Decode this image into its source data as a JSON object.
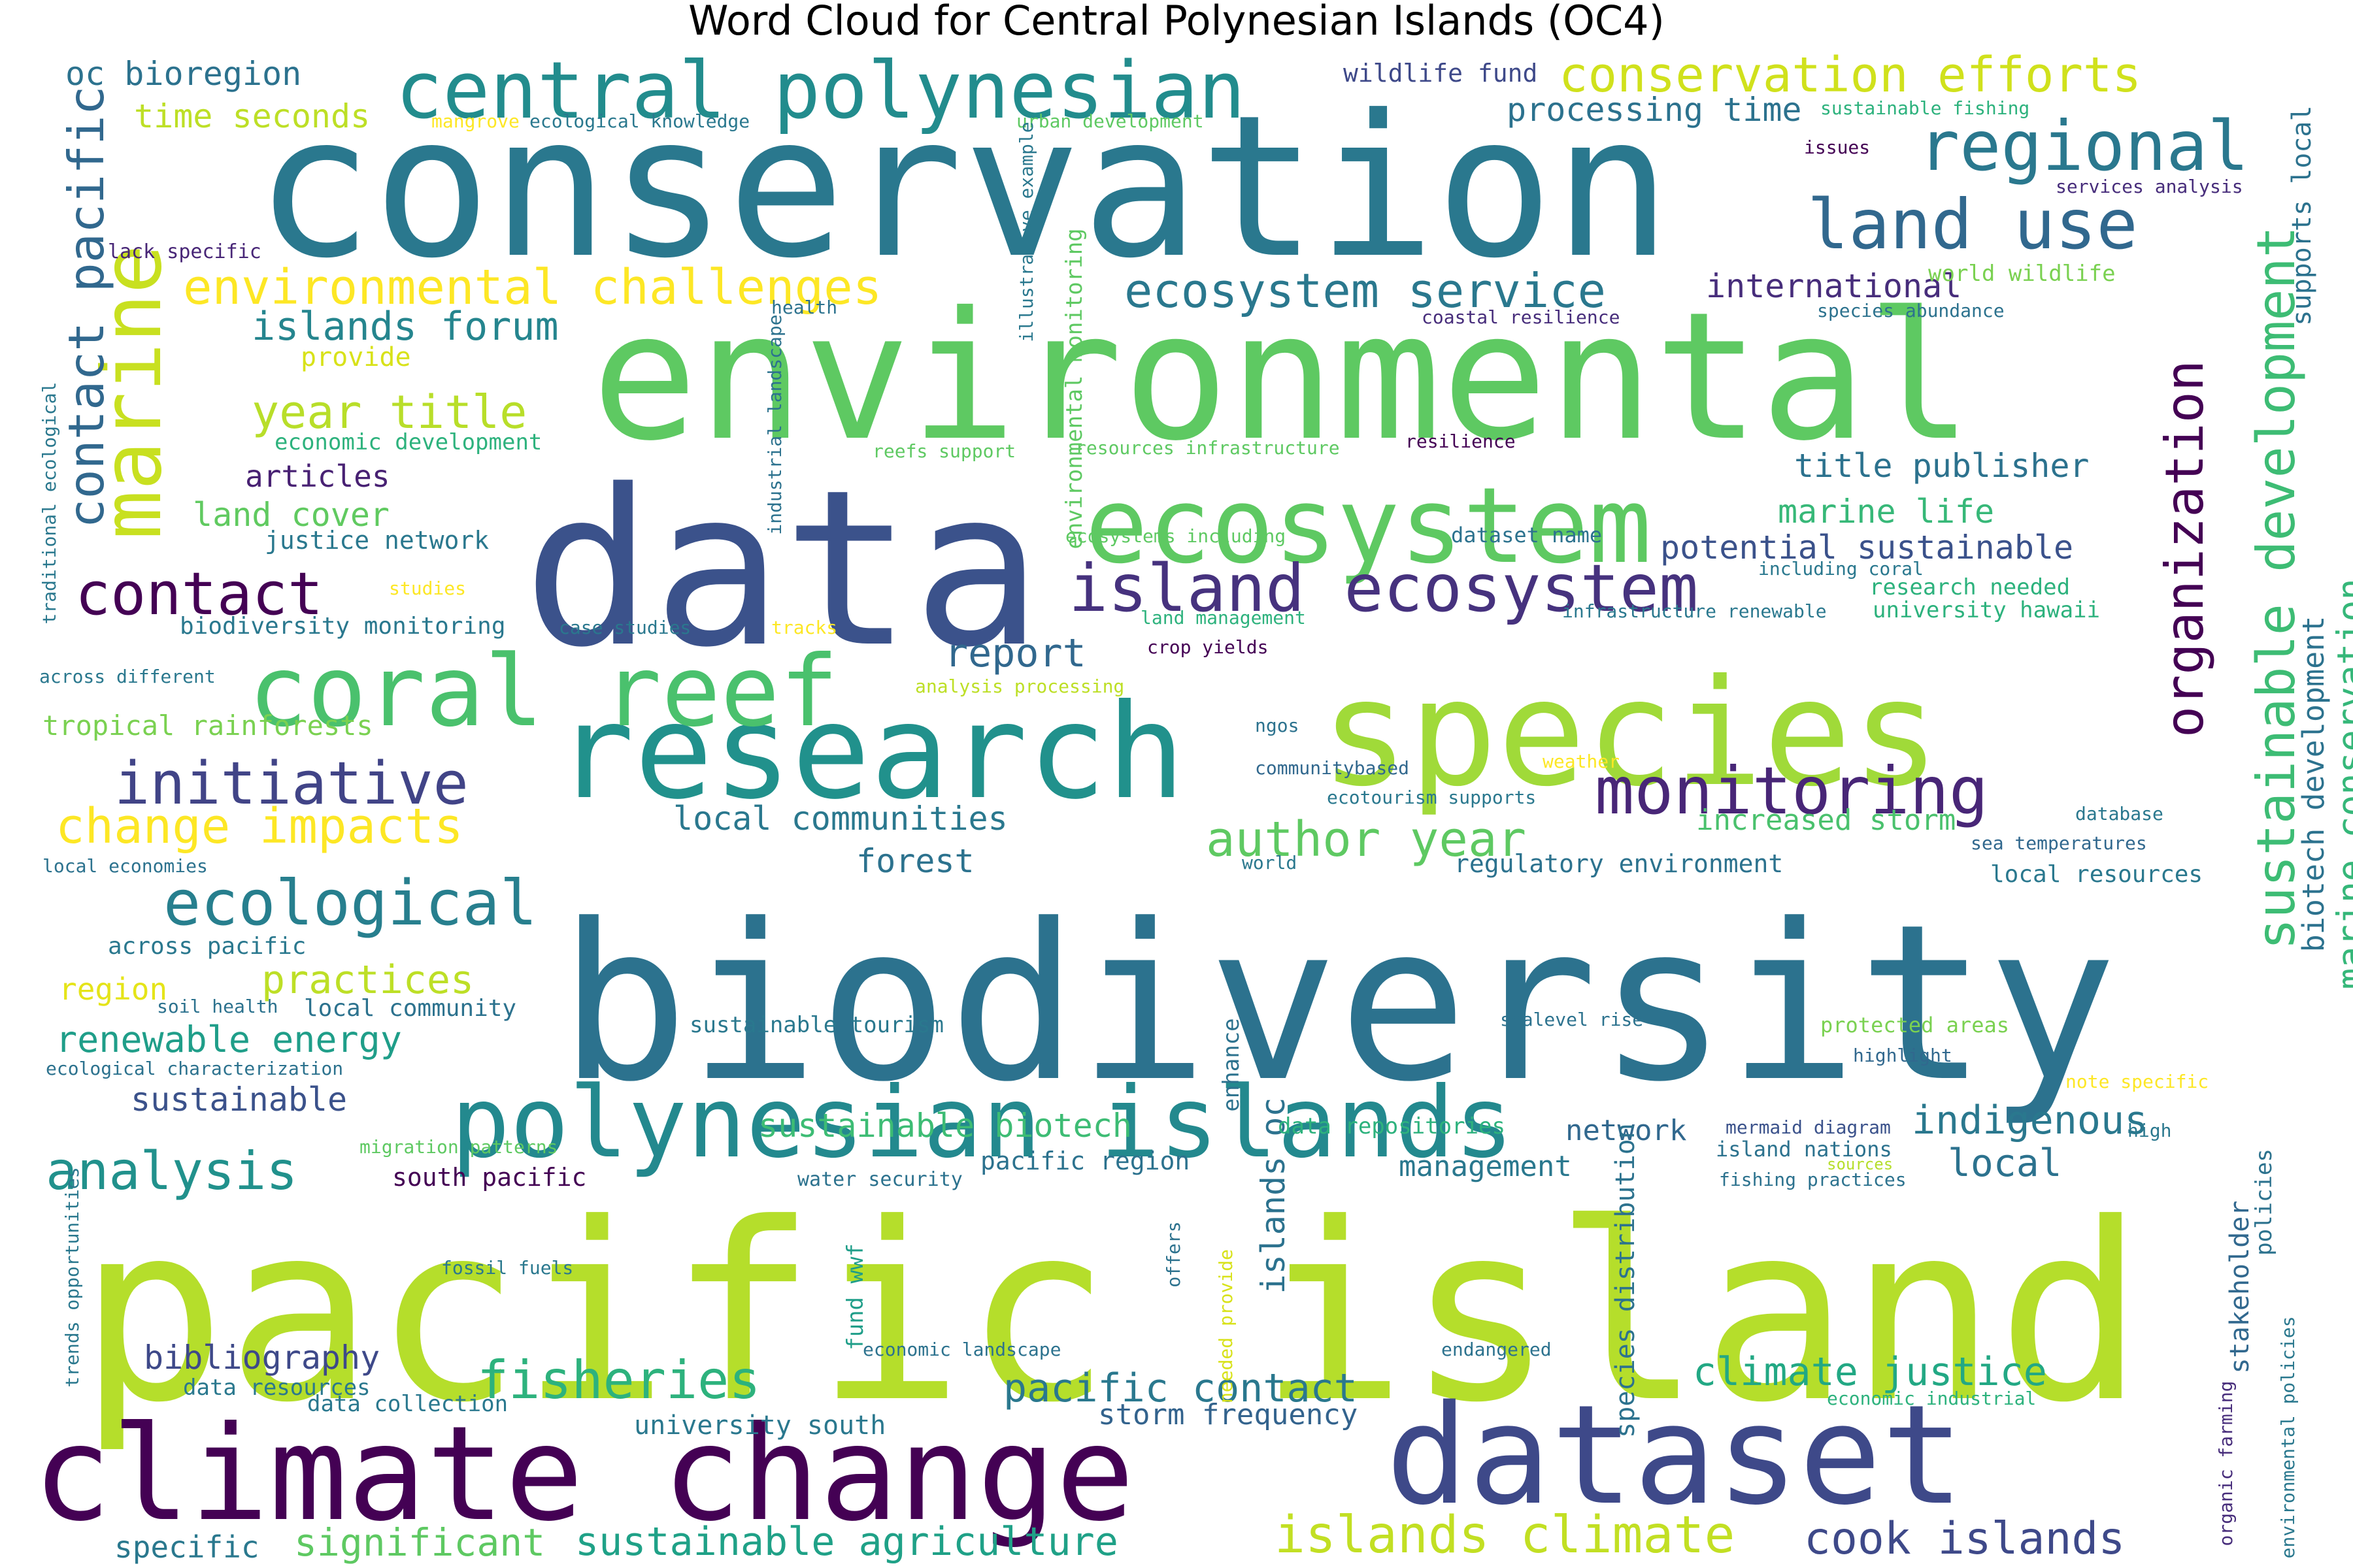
{
  "title": "Word Cloud for Central Polynesian Islands (OC4)",
  "words": [
    {
      "text": "conservation",
      "color": "#2a788e"
    },
    {
      "text": "environmental",
      "color": "#5ec962"
    },
    {
      "text": "data",
      "color": "#3b528b"
    },
    {
      "text": "species",
      "color": "#a0da39"
    },
    {
      "text": "biodiversity",
      "color": "#2c728e"
    },
    {
      "text": "pacific island",
      "color": "#b5de2b"
    },
    {
      "text": "climate change",
      "color": "#440154"
    },
    {
      "text": "dataset",
      "color": "#3e4989"
    },
    {
      "text": "research",
      "color": "#21918c"
    },
    {
      "text": "polynesian islands",
      "color": "#23898e"
    },
    {
      "text": "coral reef",
      "color": "#4ac16d"
    },
    {
      "text": "ecosystem",
      "color": "#5ec962"
    },
    {
      "text": "central polynesian",
      "color": "#228c8d"
    },
    {
      "text": "regional",
      "color": "#2a788e"
    },
    {
      "text": "land use",
      "color": "#31688e"
    },
    {
      "text": "conservation efforts",
      "color": "#d0e11c"
    },
    {
      "text": "marine",
      "color": "#c8e020"
    },
    {
      "text": "contact",
      "color": "#440154"
    },
    {
      "text": "island ecosystem",
      "color": "#46327e"
    },
    {
      "text": "monitoring",
      "color": "#482677"
    },
    {
      "text": "initiative",
      "color": "#414487"
    },
    {
      "text": "ecological",
      "color": "#277f8e"
    },
    {
      "text": "environmental challenges",
      "color": "#fde725"
    },
    {
      "text": "ecosystem service",
      "color": "#2a788e"
    },
    {
      "text": "sustainable development",
      "color": "#3dbc74"
    },
    {
      "text": "organization",
      "color": "#440154"
    },
    {
      "text": "marine conservation",
      "color": "#35b779"
    },
    {
      "text": "author year",
      "color": "#5ec962"
    },
    {
      "text": "change impacts",
      "color": "#fde725"
    },
    {
      "text": "year title",
      "color": "#b8de29"
    },
    {
      "text": "islands forum",
      "color": "#25858e"
    },
    {
      "text": "contact pacific",
      "color": "#31688e"
    },
    {
      "text": "oc bioregion",
      "color": "#2c728e"
    },
    {
      "text": "time seconds",
      "color": "#bddf26"
    },
    {
      "text": "processing time",
      "color": "#2c728e"
    },
    {
      "text": "international",
      "color": "#472d7b"
    },
    {
      "text": "title publisher",
      "color": "#2c728e"
    },
    {
      "text": "marine life",
      "color": "#37b878"
    },
    {
      "text": "potential sustainable",
      "color": "#3b528b"
    },
    {
      "text": "report",
      "color": "#31688e"
    },
    {
      "text": "analysis",
      "color": "#21918c"
    },
    {
      "text": "fisheries",
      "color": "#2db27d"
    },
    {
      "text": "practices",
      "color": "#bddf26"
    },
    {
      "text": "indigenous",
      "color": "#2a788e"
    },
    {
      "text": "local",
      "color": "#2c728e"
    },
    {
      "text": "climate justice",
      "color": "#22a884"
    },
    {
      "text": "pacific contact",
      "color": "#2a788e"
    },
    {
      "text": "storm frequency",
      "color": "#33638d"
    },
    {
      "text": "bibliography",
      "color": "#3e4989"
    },
    {
      "text": "sustainable",
      "color": "#3b528b"
    },
    {
      "text": "renewable energy",
      "color": "#1f9e89"
    },
    {
      "text": "islands oc",
      "color": "#2c728e"
    },
    {
      "text": "local communities",
      "color": "#2a788e"
    },
    {
      "text": "forest",
      "color": "#2c728e"
    },
    {
      "text": "tropical rainforests",
      "color": "#7ad151"
    },
    {
      "text": "increased storm",
      "color": "#4ac16d"
    },
    {
      "text": "regulatory environment",
      "color": "#2c728e"
    },
    {
      "text": "local resources",
      "color": "#2a788e"
    },
    {
      "text": "management",
      "color": "#2a788e"
    },
    {
      "text": "network",
      "color": "#31688e"
    },
    {
      "text": "sustainable biotech",
      "color": "#3dbc74"
    },
    {
      "text": "cook islands",
      "color": "#3e4989"
    },
    {
      "text": "islands climate",
      "color": "#c2df23"
    },
    {
      "text": "sustainable agriculture",
      "color": "#1fa187"
    },
    {
      "text": "significant",
      "color": "#5ec962"
    },
    {
      "text": "specific",
      "color": "#2a788e"
    },
    {
      "text": "university south",
      "color": "#2a788e"
    },
    {
      "text": "data collection",
      "color": "#2a788e"
    },
    {
      "text": "data resources",
      "color": "#2a788e"
    },
    {
      "text": "articles",
      "color": "#482173"
    },
    {
      "text": "land cover",
      "color": "#60ca60"
    },
    {
      "text": "economic development",
      "color": "#2db27d"
    },
    {
      "text": "provide",
      "color": "#d8e219"
    },
    {
      "text": "justice network",
      "color": "#2a788e"
    },
    {
      "text": "biodiversity monitoring",
      "color": "#2a788e"
    },
    {
      "text": "region",
      "color": "#e5e419"
    },
    {
      "text": "across pacific",
      "color": "#2a788e"
    },
    {
      "text": "local community",
      "color": "#2c728e"
    },
    {
      "text": "soil health",
      "color": "#2c728e"
    },
    {
      "text": "ecological characterization",
      "color": "#2c728e"
    },
    {
      "text": "south pacific",
      "color": "#440154"
    },
    {
      "text": "migration patterns",
      "color": "#5ec962"
    },
    {
      "text": "fossil fuels",
      "color": "#2a788e"
    },
    {
      "text": "pacific region",
      "color": "#2c728e"
    },
    {
      "text": "water security",
      "color": "#2c728e"
    },
    {
      "text": "sustainable tourism",
      "color": "#2a788e"
    },
    {
      "text": "data repositories",
      "color": "#2db27d"
    },
    {
      "text": "island nations",
      "color": "#2c728e"
    },
    {
      "text": "fishing practices",
      "color": "#2c728e"
    },
    {
      "text": "mermaid diagram",
      "color": "#3b528b"
    },
    {
      "text": "protected areas",
      "color": "#7ad151"
    },
    {
      "text": "highlight",
      "color": "#31688e"
    },
    {
      "text": "note specific",
      "color": "#fde725"
    },
    {
      "text": "sealevel rise",
      "color": "#2c728e"
    },
    {
      "text": "high",
      "color": "#2a788e"
    },
    {
      "text": "sources",
      "color": "#b5de2b"
    },
    {
      "text": "stakeholder",
      "color": "#31688e"
    },
    {
      "text": "policies",
      "color": "#2c728e"
    },
    {
      "text": "biotech development",
      "color": "#2c728e"
    },
    {
      "text": "supports local",
      "color": "#2c728e"
    },
    {
      "text": "wildlife fund",
      "color": "#3e4989"
    },
    {
      "text": "sustainable fishing",
      "color": "#2db27d"
    },
    {
      "text": "issues",
      "color": "#440154"
    },
    {
      "text": "services analysis",
      "color": "#472d7b"
    },
    {
      "text": "world wildlife",
      "color": "#7ad151"
    },
    {
      "text": "species abundance",
      "color": "#2c728e"
    },
    {
      "text": "coastal resilience",
      "color": "#472d7b"
    },
    {
      "text": "resilience",
      "color": "#440154"
    },
    {
      "text": "dataset name",
      "color": "#2c728e"
    },
    {
      "text": "including coral",
      "color": "#2a788e"
    },
    {
      "text": "research needed",
      "color": "#2db27d"
    },
    {
      "text": "university hawaii",
      "color": "#2db27d"
    },
    {
      "text": "infrastructure renewable",
      "color": "#2a788e"
    },
    {
      "text": "land management",
      "color": "#2db27d"
    },
    {
      "text": "crop yields",
      "color": "#440154"
    },
    {
      "text": "ecosystems including",
      "color": "#5ec962"
    },
    {
      "text": "reefs support",
      "color": "#5ec962"
    },
    {
      "text": "resources infrastructure",
      "color": "#5ec962"
    },
    {
      "text": "analysis processing",
      "color": "#bddf26"
    },
    {
      "text": "ngos",
      "color": "#2c728e"
    },
    {
      "text": "communitybased",
      "color": "#31688e"
    },
    {
      "text": "weather",
      "color": "#fde725"
    },
    {
      "text": "ecotourism supports",
      "color": "#2a788e"
    },
    {
      "text": "database",
      "color": "#2a788e"
    },
    {
      "text": "sea temperatures",
      "color": "#31688e"
    },
    {
      "text": "world",
      "color": "#2a788e"
    },
    {
      "text": "enhance",
      "color": "#2c728e"
    },
    {
      "text": "offers",
      "color": "#2c728e"
    },
    {
      "text": "needed provide",
      "color": "#d8e219"
    },
    {
      "text": "fund wwf",
      "color": "#1f9e89"
    },
    {
      "text": "economic landscape",
      "color": "#2c728e"
    },
    {
      "text": "endangered",
      "color": "#2c728e"
    },
    {
      "text": "species distribution",
      "color": "#2c728e"
    },
    {
      "text": "economic industrial",
      "color": "#2db27d"
    },
    {
      "text": "organic farming",
      "color": "#472d7b"
    },
    {
      "text": "environmental policies",
      "color": "#2a788e"
    },
    {
      "text": "mangrove",
      "color": "#fde725"
    },
    {
      "text": "ecological knowledge",
      "color": "#2a788e"
    },
    {
      "text": "urban development",
      "color": "#5ec962"
    },
    {
      "text": "illustrative example",
      "color": "#2a788e"
    },
    {
      "text": "environmental monitoring",
      "color": "#5ec962"
    },
    {
      "text": "industrial landscape",
      "color": "#2c728e"
    },
    {
      "text": "health",
      "color": "#2c728e"
    },
    {
      "text": "lack specific",
      "color": "#482677"
    },
    {
      "text": "traditional ecological",
      "color": "#2a788e"
    },
    {
      "text": "across different",
      "color": "#2a788e"
    },
    {
      "text": "local economies",
      "color": "#2c728e"
    },
    {
      "text": "studies",
      "color": "#fde725"
    },
    {
      "text": "case studies",
      "color": "#2a788e"
    },
    {
      "text": "tracks",
      "color": "#fde725"
    },
    {
      "text": "trends opportunities",
      "color": "#2a788e"
    }
  ]
}
